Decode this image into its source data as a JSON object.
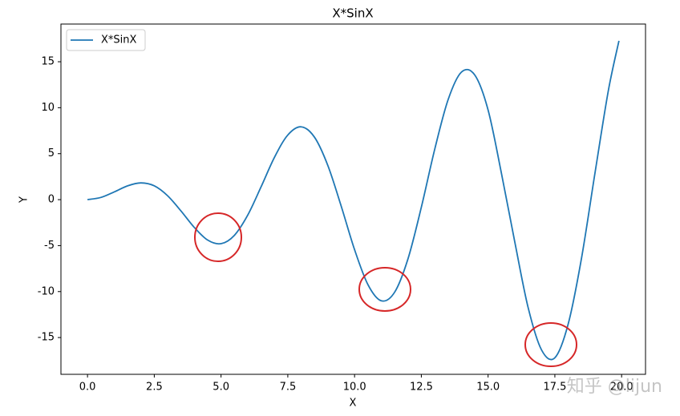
{
  "chart_data": {
    "type": "line",
    "title": "X*SinX",
    "xlabel": "X",
    "ylabel": "Y",
    "x": [
      0,
      0.5,
      1,
      1.5,
      2,
      2.5,
      3,
      3.5,
      4,
      4.5,
      5,
      5.5,
      6,
      6.5,
      7,
      7.5,
      8,
      8.5,
      9,
      9.5,
      10,
      10.5,
      11,
      11.5,
      12,
      12.5,
      13,
      13.5,
      14,
      14.5,
      15,
      15.5,
      16,
      16.5,
      17,
      17.5,
      18,
      18.5,
      19,
      19.5,
      19.9
    ],
    "series": [
      {
        "name": "X*SinX",
        "color": "#1f77b4",
        "values": [
          0,
          0.24,
          0.84,
          1.5,
          1.82,
          1.5,
          0.42,
          -1.23,
          -3.03,
          -4.4,
          -4.79,
          -3.88,
          -1.68,
          1.4,
          4.6,
          7.03,
          7.92,
          6.79,
          3.71,
          -0.71,
          -5.44,
          -9.24,
          -11.0,
          -10.07,
          -6.44,
          -0.83,
          5.46,
          10.85,
          13.87,
          13.56,
          9.75,
          2.86,
          -4.61,
          -11.75,
          -16.34,
          -17.2,
          -13.52,
          -6.34,
          2.85,
          11.81,
          17.27
        ]
      }
    ],
    "xlim": [
      -0.995,
      20.895
    ],
    "xticks": [
      {
        "value": 0,
        "label": "0.0"
      },
      2.5,
      {
        "value": 5,
        "label": "5.0"
      },
      7.5,
      {
        "value": 10,
        "label": "10.0"
      },
      12.5,
      {
        "value": 15,
        "label": "15.0"
      },
      17.5,
      {
        "value": 20,
        "label": "20.0"
      }
    ],
    "ylim": [
      -19.0,
      19.1
    ],
    "yticks": [
      -15,
      -10,
      -5,
      0,
      5,
      10,
      15
    ],
    "legend": "upper left",
    "watermark": "知乎 @lijun"
  }
}
